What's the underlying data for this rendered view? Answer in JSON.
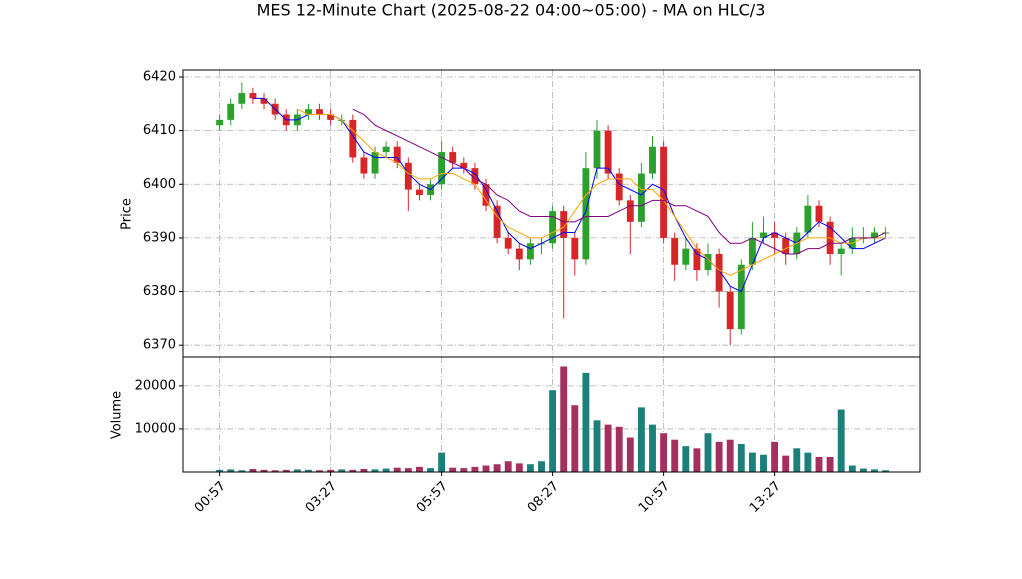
{
  "chart_data": [
    {
      "type": "candlestick",
      "title": "MES 12-Minute Chart (2025-08-22 04:00~05:00) - MA on HLC/3",
      "ylabel": "Price",
      "ylim": [
        6367.8,
        6421.3
      ],
      "yticks": [
        6370,
        6380,
        6390,
        6400,
        6410,
        6420
      ],
      "grid": true,
      "up_color": "#2ca02c",
      "down_color": "#d62728",
      "open": [
        6411,
        6412,
        6415,
        6417,
        6416,
        6415,
        6413,
        6411,
        6413,
        6414,
        6413,
        6412,
        6412,
        6405,
        6402,
        6406,
        6407,
        6404,
        6399,
        6398,
        6400,
        6406,
        6404,
        6403,
        6400,
        6396,
        6390,
        6388,
        6386,
        6389,
        6389,
        6395,
        6390,
        6386,
        6403,
        6410,
        6402,
        6397,
        6393,
        6402,
        6407,
        6390,
        6385,
        6388,
        6384,
        6387,
        6380,
        6373,
        6385,
        6390,
        6391,
        6390,
        6387,
        6391,
        6396,
        6393,
        6387,
        6388,
        6390,
        6390,
        6391
      ],
      "high": [
        6413,
        6416,
        6419,
        6418,
        6417,
        6416,
        6414,
        6414,
        6415,
        6415,
        6414,
        6413,
        6413,
        6406,
        6407,
        6408,
        6408,
        6405,
        6400,
        6401,
        6408,
        6407,
        6405,
        6404,
        6401,
        6397,
        6391,
        6389,
        6390,
        6390,
        6396,
        6396,
        6391,
        6406,
        6412,
        6411,
        6403,
        6398,
        6404,
        6409,
        6408,
        6391,
        6390,
        6389,
        6389,
        6388,
        6381,
        6386,
        6393,
        6394,
        6393,
        6391,
        6392,
        6398,
        6397,
        6394,
        6389,
        6392,
        6392,
        6392,
        6392
      ],
      "low": [
        6410,
        6411,
        6414,
        6415,
        6414,
        6412,
        6410,
        6410,
        6412,
        6412,
        6411,
        6411,
        6404,
        6401,
        6401,
        6405,
        6403,
        6395,
        6397,
        6397,
        6399,
        6403,
        6402,
        6399,
        6395,
        6389,
        6387,
        6384,
        6385,
        6387,
        6388,
        6375,
        6383,
        6385,
        6401,
        6401,
        6396,
        6387,
        6392,
        6401,
        6389,
        6382,
        6384,
        6382,
        6383,
        6377,
        6370,
        6372,
        6384,
        6389,
        6387,
        6385,
        6386,
        6390,
        6392,
        6385,
        6383,
        6387,
        6389,
        6389,
        6390
      ],
      "close": [
        6412,
        6415,
        6417,
        6416,
        6415,
        6413,
        6411,
        6413,
        6414,
        6413,
        6412,
        6412,
        6405,
        6402,
        6406,
        6407,
        6404,
        6399,
        6398,
        6400,
        6406,
        6404,
        6403,
        6400,
        6396,
        6390,
        6388,
        6386,
        6389,
        6389,
        6395,
        6390,
        6386,
        6403,
        6410,
        6402,
        6397,
        6393,
        6402,
        6407,
        6390,
        6385,
        6388,
        6384,
        6387,
        6380,
        6373,
        6385,
        6390,
        6391,
        6390,
        6387,
        6391,
        6396,
        6393,
        6387,
        6388,
        6390,
        6390,
        6391,
        6391
      ],
      "ma_lines": [
        {
          "color": "#0000ff",
          "values": [
            null,
            null,
            null,
            6416,
            6416,
            6414,
            6412,
            6412,
            6413,
            6413,
            6413,
            6412,
            6409,
            6406,
            6405,
            6405,
            6405,
            6402,
            6400,
            6399,
            6401,
            6403,
            6403,
            6402,
            6399,
            6395,
            6391,
            6389,
            6388,
            6389,
            6390,
            6391,
            6391,
            6395,
            6403,
            6403,
            6400,
            6399,
            6398,
            6400,
            6399,
            6394,
            6390,
            6387,
            6386,
            6384,
            6381,
            6380,
            6385,
            6390,
            6391,
            6390,
            6389,
            6391,
            6393,
            6392,
            6390,
            6388,
            6388,
            6389,
            6390
          ]
        },
        {
          "color": "#ffa500",
          "values": [
            null,
            null,
            null,
            null,
            null,
            null,
            null,
            6414,
            6413,
            6413,
            6413,
            6412,
            6410,
            6408,
            6406,
            6405,
            6404,
            6402,
            6401,
            6401,
            6402,
            6402,
            6401,
            6400,
            6397,
            6394,
            6392,
            6391,
            6390,
            6390,
            6391,
            6392,
            6395,
            6398,
            6400,
            6401,
            6401,
            6401,
            6399,
            6399,
            6397,
            6394,
            6391,
            6388,
            6386,
            6384,
            6383,
            6384,
            6385,
            6386,
            6387,
            6388,
            6389,
            6390,
            6390,
            6390,
            6389,
            6389,
            6390,
            6390,
            6390
          ]
        },
        {
          "color": "#800080",
          "values": [
            null,
            null,
            null,
            null,
            null,
            null,
            null,
            null,
            null,
            null,
            null,
            null,
            6414,
            6413,
            6411,
            6410,
            6409,
            6408,
            6407,
            6406,
            6405,
            6404,
            6403,
            6401,
            6400,
            6398,
            6397,
            6395,
            6394,
            6394,
            6394,
            6393,
            6393,
            6394,
            6394,
            6394,
            6395,
            6396,
            6396,
            6397,
            6397,
            6396,
            6396,
            6395,
            6394,
            6391,
            6389,
            6389,
            6390,
            6389,
            6388,
            6387,
            6387,
            6388,
            6388,
            6389,
            6389,
            6390,
            6390,
            6390,
            6391
          ]
        }
      ]
    },
    {
      "type": "volume",
      "ylabel": "Volume",
      "ylim": [
        0,
        26700
      ],
      "yticks": [
        10000,
        20000
      ],
      "grid": true,
      "up_color": "#1b7f7a",
      "down_color": "#a3305e",
      "xlim": [
        -3.3,
        63.1
      ],
      "xticks": [
        {
          "value": 0,
          "label": "00:57"
        },
        {
          "value": 10,
          "label": "03:27"
        },
        {
          "value": 20,
          "label": "05:57"
        },
        {
          "value": 30,
          "label": "08:27"
        },
        {
          "value": 40,
          "label": "10:57"
        },
        {
          "value": 50,
          "label": "13:27"
        }
      ],
      "values": [
        500,
        600,
        400,
        700,
        500,
        400,
        500,
        600,
        500,
        400,
        500,
        600,
        500,
        700,
        600,
        800,
        1000,
        900,
        1200,
        900,
        4500,
        1000,
        900,
        1200,
        1500,
        1800,
        2500,
        2000,
        1800,
        2500,
        19000,
        24500,
        15500,
        23000,
        12000,
        11000,
        10500,
        8000,
        15000,
        11000,
        9000,
        7500,
        6000,
        5500,
        9000,
        7000,
        7500,
        6500,
        4500,
        4000,
        7000,
        3800,
        5500,
        4500,
        3500,
        3500,
        14500,
        1500,
        800,
        600,
        400
      ]
    }
  ]
}
